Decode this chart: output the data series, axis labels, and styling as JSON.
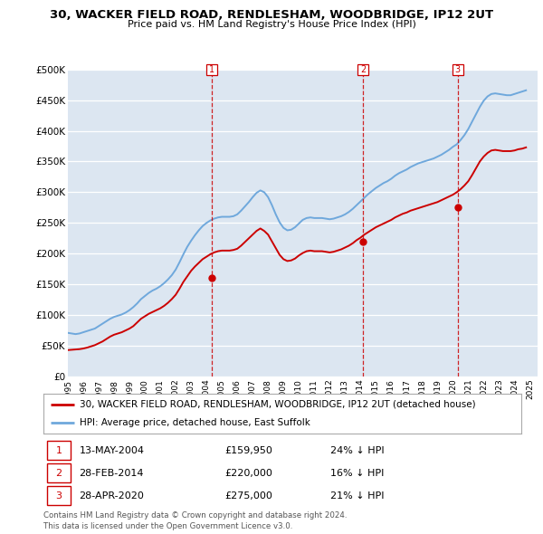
{
  "title": "30, WACKER FIELD ROAD, RENDLESHAM, WOODBRIDGE, IP12 2UT",
  "subtitle": "Price paid vs. HM Land Registry's House Price Index (HPI)",
  "ylim": [
    0,
    500000
  ],
  "yticks": [
    0,
    50000,
    100000,
    150000,
    200000,
    250000,
    300000,
    350000,
    400000,
    450000,
    500000
  ],
  "ytick_labels": [
    "£0",
    "£50K",
    "£100K",
    "£150K",
    "£200K",
    "£250K",
    "£300K",
    "£350K",
    "£400K",
    "£450K",
    "£500K"
  ],
  "xlim_start": 1995.0,
  "xlim_end": 2025.5,
  "hpi_color": "#6fa8dc",
  "price_color": "#cc0000",
  "background_color": "#dce6f1",
  "grid_color": "#ffffff",
  "sale_dates": [
    2004.36,
    2014.16,
    2020.32
  ],
  "sale_prices": [
    159950,
    220000,
    275000
  ],
  "sale_labels": [
    "1",
    "2",
    "3"
  ],
  "sale_info": [
    {
      "num": "1",
      "date": "13-MAY-2004",
      "price": "£159,950",
      "hpi": "24% ↓ HPI"
    },
    {
      "num": "2",
      "date": "28-FEB-2014",
      "price": "£220,000",
      "hpi": "16% ↓ HPI"
    },
    {
      "num": "3",
      "date": "28-APR-2020",
      "price": "£275,000",
      "hpi": "21% ↓ HPI"
    }
  ],
  "legend_property": "30, WACKER FIELD ROAD, RENDLESHAM, WOODBRIDGE, IP12 2UT (detached house)",
  "legend_hpi": "HPI: Average price, detached house, East Suffolk",
  "footnote1": "Contains HM Land Registry data © Crown copyright and database right 2024.",
  "footnote2": "This data is licensed under the Open Government Licence v3.0.",
  "hpi_years": [
    1995.0,
    1995.25,
    1995.5,
    1995.75,
    1996.0,
    1996.25,
    1996.5,
    1996.75,
    1997.0,
    1997.25,
    1997.5,
    1997.75,
    1998.0,
    1998.25,
    1998.5,
    1998.75,
    1999.0,
    1999.25,
    1999.5,
    1999.75,
    2000.0,
    2000.25,
    2000.5,
    2000.75,
    2001.0,
    2001.25,
    2001.5,
    2001.75,
    2002.0,
    2002.25,
    2002.5,
    2002.75,
    2003.0,
    2003.25,
    2003.5,
    2003.75,
    2004.0,
    2004.25,
    2004.5,
    2004.75,
    2005.0,
    2005.25,
    2005.5,
    2005.75,
    2006.0,
    2006.25,
    2006.5,
    2006.75,
    2007.0,
    2007.25,
    2007.5,
    2007.75,
    2008.0,
    2008.25,
    2008.5,
    2008.75,
    2009.0,
    2009.25,
    2009.5,
    2009.75,
    2010.0,
    2010.25,
    2010.5,
    2010.75,
    2011.0,
    2011.25,
    2011.5,
    2011.75,
    2012.0,
    2012.25,
    2012.5,
    2012.75,
    2013.0,
    2013.25,
    2013.5,
    2013.75,
    2014.0,
    2014.25,
    2014.5,
    2014.75,
    2015.0,
    2015.25,
    2015.5,
    2015.75,
    2016.0,
    2016.25,
    2016.5,
    2016.75,
    2017.0,
    2017.25,
    2017.5,
    2017.75,
    2018.0,
    2018.25,
    2018.5,
    2018.75,
    2019.0,
    2019.25,
    2019.5,
    2019.75,
    2020.0,
    2020.25,
    2020.5,
    2020.75,
    2021.0,
    2021.25,
    2021.5,
    2021.75,
    2022.0,
    2022.25,
    2022.5,
    2022.75,
    2023.0,
    2023.25,
    2023.5,
    2023.75,
    2024.0,
    2024.25,
    2024.5,
    2024.75
  ],
  "hpi_values": [
    71000,
    70000,
    69000,
    70000,
    72000,
    74000,
    76000,
    78000,
    82000,
    86000,
    90000,
    94000,
    97000,
    99000,
    101000,
    104000,
    108000,
    113000,
    119000,
    126000,
    131000,
    136000,
    140000,
    143000,
    147000,
    152000,
    158000,
    165000,
    174000,
    186000,
    199000,
    211000,
    221000,
    230000,
    238000,
    245000,
    250000,
    254000,
    257000,
    259000,
    260000,
    260000,
    260000,
    261000,
    264000,
    270000,
    277000,
    284000,
    292000,
    299000,
    303000,
    300000,
    292000,
    279000,
    264000,
    251000,
    242000,
    238000,
    239000,
    243000,
    249000,
    255000,
    258000,
    259000,
    258000,
    258000,
    258000,
    257000,
    256000,
    257000,
    259000,
    261000,
    264000,
    268000,
    273000,
    279000,
    285000,
    291000,
    297000,
    302000,
    307000,
    311000,
    315000,
    318000,
    322000,
    327000,
    331000,
    334000,
    337000,
    341000,
    344000,
    347000,
    349000,
    351000,
    353000,
    355000,
    358000,
    361000,
    365000,
    369000,
    374000,
    378000,
    385000,
    393000,
    403000,
    415000,
    427000,
    439000,
    449000,
    456000,
    460000,
    461000,
    460000,
    459000,
    458000,
    458000,
    460000,
    462000,
    464000,
    466000
  ],
  "price_years": [
    1995.0,
    1995.25,
    1995.5,
    1995.75,
    1996.0,
    1996.25,
    1996.5,
    1996.75,
    1997.0,
    1997.25,
    1997.5,
    1997.75,
    1998.0,
    1998.25,
    1998.5,
    1998.75,
    1999.0,
    1999.25,
    1999.5,
    1999.75,
    2000.0,
    2000.25,
    2000.5,
    2000.75,
    2001.0,
    2001.25,
    2001.5,
    2001.75,
    2002.0,
    2002.25,
    2002.5,
    2002.75,
    2003.0,
    2003.25,
    2003.5,
    2003.75,
    2004.0,
    2004.25,
    2004.5,
    2004.75,
    2005.0,
    2005.25,
    2005.5,
    2005.75,
    2006.0,
    2006.25,
    2006.5,
    2006.75,
    2007.0,
    2007.25,
    2007.5,
    2007.75,
    2008.0,
    2008.25,
    2008.5,
    2008.75,
    2009.0,
    2009.25,
    2009.5,
    2009.75,
    2010.0,
    2010.25,
    2010.5,
    2010.75,
    2011.0,
    2011.25,
    2011.5,
    2011.75,
    2012.0,
    2012.25,
    2012.5,
    2012.75,
    2013.0,
    2013.25,
    2013.5,
    2013.75,
    2014.0,
    2014.25,
    2014.5,
    2014.75,
    2015.0,
    2015.25,
    2015.5,
    2015.75,
    2016.0,
    2016.25,
    2016.5,
    2016.75,
    2017.0,
    2017.25,
    2017.5,
    2017.75,
    2018.0,
    2018.25,
    2018.5,
    2018.75,
    2019.0,
    2019.25,
    2019.5,
    2019.75,
    2020.0,
    2020.25,
    2020.5,
    2020.75,
    2021.0,
    2021.25,
    2021.5,
    2021.75,
    2022.0,
    2022.25,
    2022.5,
    2022.75,
    2023.0,
    2023.25,
    2023.5,
    2023.75,
    2024.0,
    2024.25,
    2024.5,
    2024.75
  ],
  "price_values": [
    43000,
    43500,
    44000,
    44500,
    45500,
    47000,
    49000,
    51000,
    54000,
    57000,
    61000,
    65000,
    68000,
    70000,
    72000,
    75000,
    78000,
    82000,
    88000,
    94000,
    98000,
    102000,
    105000,
    108000,
    111000,
    115000,
    120000,
    126000,
    133000,
    143000,
    154000,
    163000,
    172000,
    179000,
    185000,
    191000,
    195000,
    199000,
    202000,
    204000,
    205000,
    205000,
    205000,
    206000,
    208000,
    213000,
    219000,
    225000,
    231000,
    237000,
    241000,
    237000,
    231000,
    220000,
    209000,
    198000,
    191000,
    188000,
    189000,
    192000,
    197000,
    201000,
    204000,
    205000,
    204000,
    204000,
    204000,
    203000,
    202000,
    203000,
    205000,
    207000,
    210000,
    213000,
    217000,
    222000,
    226000,
    231000,
    235000,
    239000,
    243000,
    246000,
    249000,
    252000,
    255000,
    259000,
    262000,
    265000,
    267000,
    270000,
    272000,
    274000,
    276000,
    278000,
    280000,
    282000,
    284000,
    287000,
    290000,
    293000,
    296000,
    300000,
    305000,
    311000,
    318000,
    328000,
    339000,
    350000,
    358000,
    364000,
    368000,
    369000,
    368000,
    367000,
    367000,
    367000,
    368000,
    370000,
    371000,
    373000
  ]
}
